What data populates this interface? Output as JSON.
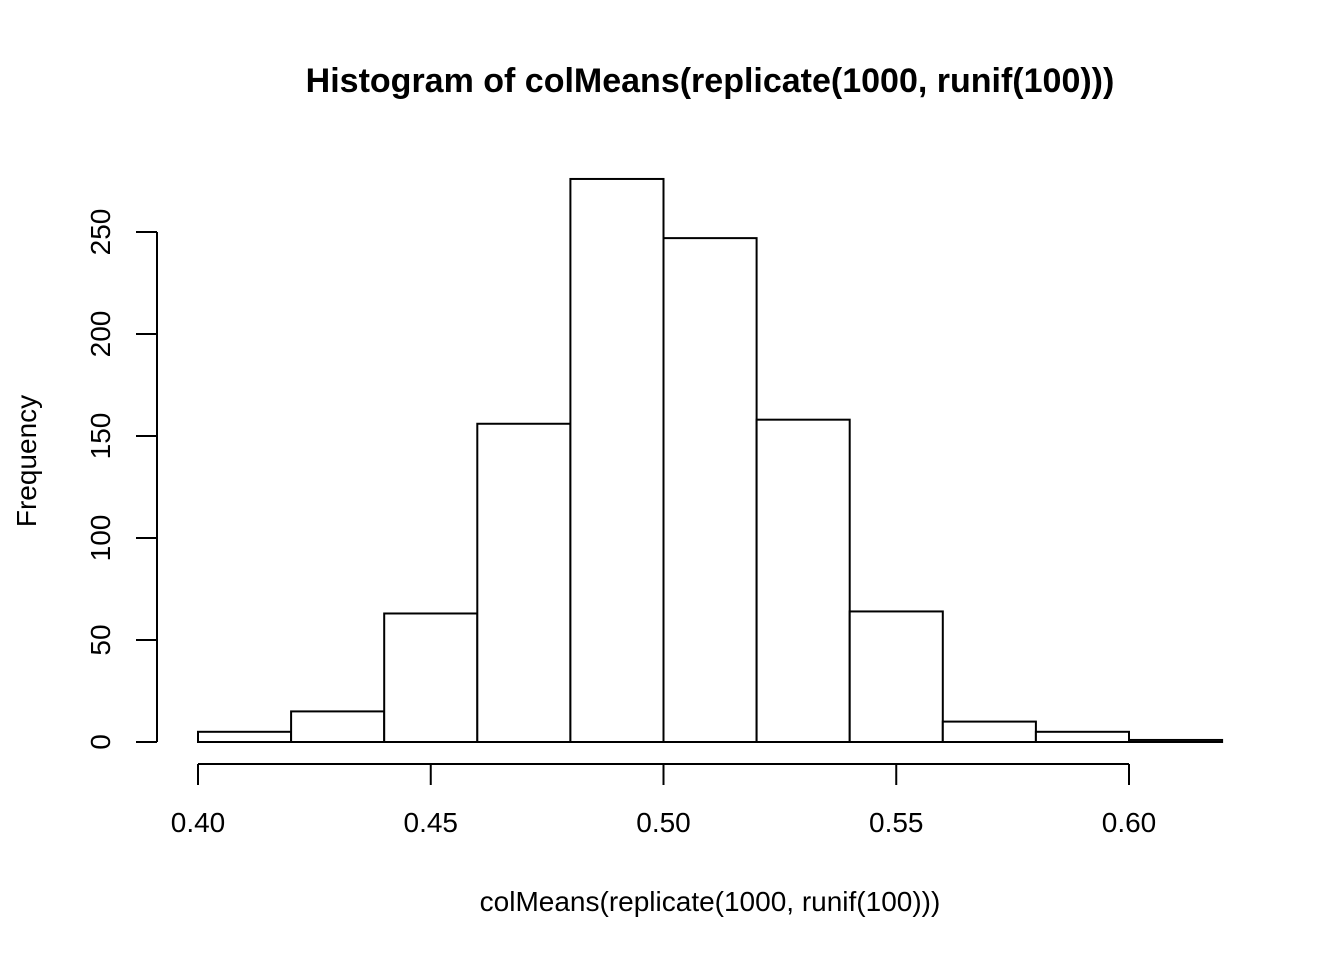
{
  "chart_data": {
    "type": "bar",
    "title": "Histogram of colMeans(replicate(1000, runif(100)))",
    "xlabel": "colMeans(replicate(1000, runif(100)))",
    "ylabel": "Frequency",
    "bins": [
      {
        "from": 0.4,
        "to": 0.42,
        "count": 5
      },
      {
        "from": 0.42,
        "to": 0.44,
        "count": 15
      },
      {
        "from": 0.44,
        "to": 0.46,
        "count": 63
      },
      {
        "from": 0.46,
        "to": 0.48,
        "count": 156
      },
      {
        "from": 0.48,
        "to": 0.5,
        "count": 276
      },
      {
        "from": 0.5,
        "to": 0.52,
        "count": 247
      },
      {
        "from": 0.52,
        "to": 0.54,
        "count": 158
      },
      {
        "from": 0.54,
        "to": 0.56,
        "count": 64
      },
      {
        "from": 0.56,
        "to": 0.58,
        "count": 10
      },
      {
        "from": 0.58,
        "to": 0.6,
        "count": 5
      },
      {
        "from": 0.6,
        "to": 0.62,
        "count": 1
      }
    ],
    "xlim": [
      0.4,
      0.62
    ],
    "ylim": [
      0,
      276
    ],
    "x_ticks": [
      0.4,
      0.45,
      0.5,
      0.55,
      0.6
    ],
    "x_tick_labels": [
      "0.40",
      "0.45",
      "0.50",
      "0.55",
      "0.60"
    ],
    "y_ticks": [
      0,
      50,
      100,
      150,
      200,
      250
    ],
    "y_tick_labels": [
      "0",
      "50",
      "100",
      "150",
      "200",
      "250"
    ],
    "grid": false,
    "legend": "none",
    "colors": {
      "bar_fill": "#ffffff",
      "bar_stroke": "#000000",
      "background": "#ffffff"
    }
  }
}
